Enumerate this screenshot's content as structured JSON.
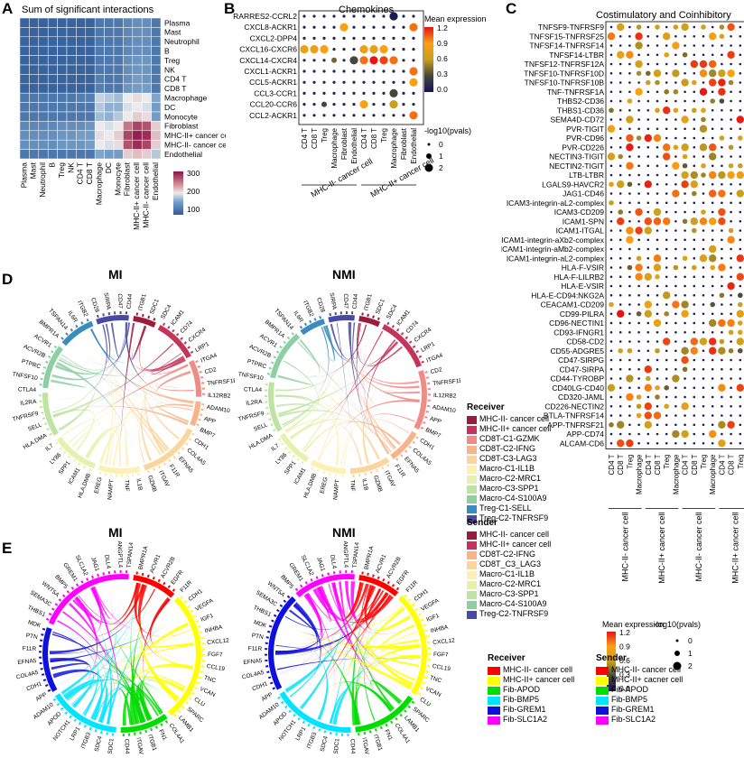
{
  "panels": {
    "A": {
      "letter": "A",
      "title": "Sum of significant interactions"
    },
    "B": {
      "letter": "B",
      "title": "Chemokines"
    },
    "C": {
      "letter": "C",
      "title": "Costimulatory and Coinhibitory"
    },
    "D": {
      "letter": "D",
      "left_title": "MI",
      "right_title": "NMI"
    },
    "E": {
      "letter": "E",
      "left_title": "MI",
      "right_title": "NMI"
    }
  },
  "chart_data": [
    {
      "type": "heatmap",
      "title": "Sum of significant interactions",
      "rows": [
        "Plasma",
        "Mast",
        "Neutrophil",
        "B",
        "Treg",
        "NK",
        "CD4 T",
        "CD8 T",
        "Macrophage",
        "DC",
        "Monocyte",
        "Fibroblast",
        "MHC-II+ cancer cell",
        "MHC-II- cancer cell",
        "Endothelial"
      ],
      "cols": [
        "Plasma",
        "Mast",
        "Neutrophil",
        "B",
        "Treg",
        "NK",
        "CD4 T",
        "CD8 T",
        "Macrophage",
        "DC",
        "Monocyte",
        "Fibroblast",
        "MHC-II+ cancer cell",
        "MHC-II- cancer cell",
        "Endothelial"
      ],
      "legend_ticks": [
        300,
        200,
        100
      ],
      "values": [
        [
          30,
          30,
          30,
          30,
          30,
          30,
          30,
          30,
          60,
          60,
          60,
          80,
          90,
          90,
          60
        ],
        [
          30,
          30,
          30,
          30,
          30,
          30,
          30,
          30,
          60,
          60,
          60,
          80,
          90,
          90,
          60
        ],
        [
          30,
          30,
          30,
          30,
          30,
          30,
          30,
          30,
          60,
          60,
          60,
          80,
          90,
          90,
          60
        ],
        [
          30,
          30,
          30,
          30,
          30,
          30,
          30,
          30,
          60,
          60,
          60,
          80,
          90,
          90,
          60
        ],
        [
          30,
          30,
          30,
          30,
          30,
          30,
          30,
          30,
          60,
          60,
          60,
          90,
          100,
          100,
          60
        ],
        [
          30,
          30,
          30,
          30,
          30,
          30,
          30,
          30,
          60,
          60,
          60,
          90,
          100,
          100,
          60
        ],
        [
          30,
          30,
          30,
          30,
          30,
          30,
          30,
          30,
          70,
          60,
          60,
          90,
          110,
          100,
          60
        ],
        [
          30,
          30,
          30,
          30,
          30,
          30,
          30,
          30,
          70,
          60,
          60,
          100,
          110,
          110,
          60
        ],
        [
          60,
          60,
          60,
          60,
          60,
          60,
          70,
          70,
          160,
          150,
          140,
          180,
          190,
          180,
          120
        ],
        [
          60,
          60,
          60,
          60,
          60,
          60,
          60,
          60,
          150,
          130,
          130,
          170,
          180,
          170,
          110
        ],
        [
          60,
          60,
          60,
          60,
          60,
          60,
          60,
          60,
          140,
          130,
          150,
          180,
          200,
          190,
          110
        ],
        [
          80,
          80,
          80,
          80,
          90,
          90,
          90,
          100,
          180,
          170,
          180,
          260,
          300,
          290,
          200
        ],
        [
          90,
          90,
          90,
          90,
          100,
          100,
          110,
          110,
          190,
          180,
          200,
          300,
          330,
          320,
          210
        ],
        [
          90,
          90,
          90,
          90,
          100,
          100,
          100,
          110,
          180,
          170,
          190,
          290,
          320,
          300,
          200
        ],
        [
          60,
          60,
          60,
          60,
          60,
          60,
          60,
          60,
          120,
          110,
          110,
          200,
          210,
          200,
          150
        ]
      ]
    },
    {
      "type": "scatter",
      "title": "Chemokines",
      "rows": [
        "RARRES2-CCRL2",
        "CXCL8-ACKR1",
        "CXCL2-DPP4",
        "CXCL16-CXCR6",
        "CXCL14-CXCR4",
        "CXCL1-ACKR1",
        "CCL5-ACKR1",
        "CCL3-CCR1",
        "CCL20-CCR6",
        "CCL2-ACKR1"
      ],
      "cols": [
        "CD4 T",
        "CD8 T",
        "Treg",
        "Macrophage",
        "Fibroblast",
        "Endothelial",
        "CD4 T",
        "CD8 T",
        "Treg",
        "Macrophage",
        "Fibroblast",
        "Endothelial"
      ],
      "col_groups": [
        {
          "label": "MHC-II- cancer cell"
        },
        {
          "label": "MHC-II+ cancer cell"
        }
      ],
      "color_legend_title": "Mean expression",
      "color_ticks": [
        "1.2",
        "0.9",
        "0.6",
        "0.3",
        "0.0"
      ],
      "size_legend_title": "-log10(pvals)",
      "size_ticks": [
        "0",
        "1",
        "2"
      ],
      "points": [
        [
          0,
          0.1,
          0
        ],
        [
          0,
          0.1,
          0
        ],
        [
          0,
          0.1,
          0
        ],
        [
          0,
          0.1,
          0
        ],
        [
          0,
          0.1,
          0
        ],
        [
          0,
          0.1,
          0
        ],
        [
          0,
          0.1,
          0
        ],
        [
          0,
          0.1,
          0
        ],
        [
          0,
          0.1,
          0
        ],
        [
          2,
          0.05,
          2
        ],
        [
          0,
          0.1,
          0
        ],
        [
          0,
          0.1,
          0
        ],
        [
          0,
          0.1,
          0
        ],
        [
          0,
          0.1,
          0
        ],
        [
          0,
          0.1,
          0
        ],
        [
          0,
          0.1,
          0
        ],
        [
          2,
          0.9,
          2
        ],
        [
          0,
          0.1,
          0
        ],
        [
          0,
          0.1,
          0
        ],
        [
          0,
          0.1,
          0
        ],
        [
          0,
          0.1,
          0
        ],
        [
          0,
          0.1,
          0
        ],
        [
          0,
          0.1,
          0
        ],
        [
          2,
          1.0,
          2
        ],
        [
          0,
          0.1,
          0
        ],
        [
          0,
          0.1,
          0
        ],
        [
          0,
          0.1,
          0
        ],
        [
          0,
          0.1,
          0
        ],
        [
          0,
          0.1,
          0
        ],
        [
          0,
          0.1,
          0
        ],
        [
          0,
          0.1,
          0
        ],
        [
          0,
          0.1,
          0
        ],
        [
          0,
          0.1,
          0
        ],
        [
          0,
          0.1,
          0
        ],
        [
          0,
          0.1,
          0
        ],
        [
          0,
          0.1,
          0
        ],
        [
          2,
          0.8,
          2
        ],
        [
          2,
          0.8,
          2
        ],
        [
          2,
          0.9,
          2
        ],
        [
          0,
          0.1,
          0
        ],
        [
          0,
          0.1,
          0
        ],
        [
          0,
          0.1,
          0
        ],
        [
          2,
          0.8,
          2
        ],
        [
          2,
          0.8,
          2
        ],
        [
          2,
          0.9,
          2
        ],
        [
          0,
          0.1,
          0
        ],
        [
          0,
          0.1,
          0
        ],
        [
          0,
          0.1,
          0
        ],
        [
          0,
          0.1,
          0
        ],
        [
          0,
          0.1,
          0
        ],
        [
          0,
          0.1,
          0
        ],
        [
          1,
          0.4,
          1
        ],
        [
          0,
          0.1,
          0
        ],
        [
          2,
          0.3,
          2
        ],
        [
          2,
          1.0,
          2
        ],
        [
          2,
          1.2,
          2
        ],
        [
          2,
          1.1,
          2
        ],
        [
          2,
          1.0,
          2
        ],
        [
          0,
          0.1,
          0
        ],
        [
          0,
          0.1,
          0
        ],
        [
          0,
          0.1,
          0
        ],
        [
          0,
          0.1,
          0
        ],
        [
          0,
          0.1,
          0
        ],
        [
          0,
          0.1,
          0
        ],
        [
          0,
          0.1,
          0
        ],
        [
          0,
          0.1,
          0
        ],
        [
          0,
          0.1,
          0
        ],
        [
          0,
          0.1,
          0
        ],
        [
          0,
          0.1,
          0
        ],
        [
          0,
          0.1,
          0
        ],
        [
          0,
          0.1,
          0
        ],
        [
          2,
          1.0,
          2
        ],
        [
          0,
          0.1,
          0
        ],
        [
          0,
          0.1,
          0
        ],
        [
          0,
          0.1,
          0
        ],
        [
          0,
          0.1,
          0
        ],
        [
          0,
          0.1,
          0
        ],
        [
          0,
          0.1,
          0
        ],
        [
          0,
          0.1,
          0
        ],
        [
          0,
          0.1,
          0
        ],
        [
          0,
          0.1,
          0
        ],
        [
          0,
          0.1,
          0
        ],
        [
          0,
          0.1,
          0
        ],
        [
          2,
          0.9,
          2
        ],
        [
          0,
          0.1,
          0
        ],
        [
          0,
          0.1,
          0
        ],
        [
          0,
          0.1,
          0
        ],
        [
          0,
          0.1,
          0
        ],
        [
          0,
          0.1,
          0
        ],
        [
          0,
          0.1,
          0
        ],
        [
          0,
          0.1,
          0
        ],
        [
          0,
          0.1,
          0
        ],
        [
          0,
          0.1,
          0
        ],
        [
          2,
          0.3,
          2
        ],
        [
          0,
          0.1,
          0
        ],
        [
          0,
          0.1,
          0
        ],
        [
          0,
          0.1,
          0
        ],
        [
          0,
          0.1,
          0
        ],
        [
          1,
          0.3,
          1
        ],
        [
          0,
          0.1,
          0
        ],
        [
          0,
          0.1,
          0
        ],
        [
          0,
          0.1,
          0
        ],
        [
          2,
          0.9,
          2
        ],
        [
          0,
          0.1,
          0
        ],
        [
          0,
          0.1,
          0
        ],
        [
          2,
          0.6,
          2
        ],
        [
          0,
          0.1,
          0
        ],
        [
          0,
          0.1,
          0
        ],
        [
          0,
          0.1,
          0
        ],
        [
          0,
          0.1,
          0
        ],
        [
          0,
          0.1,
          0
        ],
        [
          0,
          0.1,
          0
        ],
        [
          0,
          0.1,
          0
        ],
        [
          0,
          0.1,
          0
        ],
        [
          0,
          0.1,
          0
        ],
        [
          0,
          0.1,
          0
        ],
        [
          0,
          0.1,
          0
        ],
        [
          0,
          0.1,
          0
        ],
        [
          0,
          0.1,
          0
        ],
        [
          2,
          1.0,
          2
        ]
      ]
    },
    {
      "type": "scatter",
      "title": "Costimulatory and Coinhibitory",
      "rows": [
        "TNFSF9-TNFRSF9",
        "TNFSF15-TNFRSF25",
        "TNFSF14-TNFRSF14",
        "TNFSF14-LTBR",
        "TNFSF12-TNFRSF12A",
        "TNFSF10-TNFRSF10D",
        "TNFSF10-TNFRSF10B",
        "TNF-TNFRSF1A",
        "THBS2-CD36",
        "THBS1-CD36",
        "SEMA4D-CD72",
        "PVR-TIGIT",
        "PVR-CD96",
        "PVR-CD226",
        "NECTIN3-TIGIT",
        "NECTIN2-TIGIT",
        "LTB-LTBR",
        "LGALS9-HAVCR2",
        "JAG1-CD46",
        "ICAM3-integrin-aL2-complex",
        "ICAM3-CD209",
        "ICAM1-SPN",
        "ICAM1-ITGAL",
        "ICAM1-integrin-aXb2-complex",
        "ICAM1-integrin-aMb2-complex",
        "ICAM1-integrin-aL2-complex",
        "HLA-F-VSIR",
        "HLA-F-LILRB2",
        "HLA-E-VSIR",
        "HLA-E-CD94:NKG2A",
        "CEACAM1-CD209",
        "CD99-PILRA",
        "CD96-NECTIN1",
        "CD93-IFNGR1",
        "CD58-CD2",
        "CD55-ADGRE5",
        "CD47-SIRPG",
        "CD47-SIRPA",
        "CD44-TYROBP",
        "CD40LG-CD40",
        "CD320-JAML",
        "CD226-NECTIN2",
        "BTLA-TNFRSF14",
        "APP-TNFRSF21",
        "APP-CD74",
        "ALCAM-CD6"
      ],
      "cols": [
        "CD4 T",
        "CD8 T",
        "Treg",
        "Macrophage",
        "CD4 T",
        "CD8 T",
        "Treg",
        "Macrophage",
        "CD4 T",
        "CD8 T",
        "Treg",
        "Macrophage",
        "CD4 T",
        "CD8 T",
        "Treg",
        "Macrophage"
      ],
      "col_groups": [
        {
          "label": "MHC-II- cancer cell"
        },
        {
          "label": "MHC-II+ cancer cell"
        },
        {
          "label": "MHC-II- cancer cell"
        },
        {
          "label": "MHC-II+ cancer cell"
        }
      ],
      "color_legend_title": "Mean expression",
      "color_ticks": [
        "1.2",
        "0.9",
        "0.6",
        "0.3",
        "0.0"
      ],
      "size_legend_title": "-log10(pvals)",
      "size_ticks": [
        "0",
        "1",
        "2"
      ],
      "seed": 7
    }
  ],
  "chord_legend": {
    "D_receiver": {
      "title": "Receiver",
      "items": [
        {
          "label": "MHC-II- cancer cell",
          "color": "#9b1b3c"
        },
        {
          "label": "MHC-II+ cancer cell",
          "color": "#c2345a"
        },
        {
          "label": "CD8T-C1-GZMK",
          "color": "#ee8c85"
        },
        {
          "label": "CD8T-C2-IFNG",
          "color": "#f7b48a"
        },
        {
          "label": "CD8T-C3-LAG3",
          "color": "#fbd59c"
        },
        {
          "label": "Macro-C1-IL1B",
          "color": "#fdf0b4"
        },
        {
          "label": "Macro-C2-MRC1",
          "color": "#e7f1ae"
        },
        {
          "label": "Macro-C3-SPP1",
          "color": "#bfe3a2"
        },
        {
          "label": "Macro-C4-S100A9",
          "color": "#8dcfa3"
        },
        {
          "label": "Treg-C1-SELL",
          "color": "#3b8bbd"
        },
        {
          "label": "Treg-C2-TNFRSF9",
          "color": "#4a4ba0"
        }
      ]
    },
    "D_sender": {
      "title": "Sender",
      "items": [
        {
          "label": "MHC-II- cancer cell",
          "color": "#9b1b3c"
        },
        {
          "label": "MHC-II+ cancer cell",
          "color": "#c2345a"
        },
        {
          "label": "CD8T-C2-IFNG",
          "color": "#f7b48a"
        },
        {
          "label": "CD8T_C3_LAG3",
          "color": "#fbd59c"
        },
        {
          "label": "Macro-C1-IL1B",
          "color": "#fdf0b4"
        },
        {
          "label": "Macro-C2-MRC1",
          "color": "#e7f1ae"
        },
        {
          "label": "Macro-C3-SPP1",
          "color": "#bfe3a2"
        },
        {
          "label": "Macro-C4-S100A9",
          "color": "#8dcfa3"
        },
        {
          "label": "Treg-C2-TNFRSF9",
          "color": "#4a4ba0"
        }
      ]
    },
    "E_receiver": {
      "title": "Receiver",
      "items": [
        {
          "label": "MHC-II- cancer cell",
          "color": "#ff0000"
        },
        {
          "label": "MHC-II+ cancer cell",
          "color": "#ffff00"
        },
        {
          "label": "Fib-APOD",
          "color": "#00dd00"
        },
        {
          "label": "Fib-BMP5",
          "color": "#00e5ff"
        },
        {
          "label": "Fib-GREM1",
          "color": "#1010dd"
        },
        {
          "label": "Fib-SLC1A2",
          "color": "#ff00ff"
        }
      ]
    },
    "E_sender": {
      "title": "Sender",
      "items": [
        {
          "label": "MHC-II- cancer cell",
          "color": "#ff0000"
        },
        {
          "label": "MHC-II+ cacner cell",
          "color": "#ffff00"
        },
        {
          "label": "Fib-APOD",
          "color": "#00dd00"
        },
        {
          "label": "Fib-BMP5",
          "color": "#00e5ff"
        },
        {
          "label": "Fib-GREM1",
          "color": "#1010dd"
        },
        {
          "label": "Fib-SLC1A2",
          "color": "#ff00ff"
        }
      ]
    }
  },
  "chord_D_colors": [
    "#9b1b3c",
    "#c2345a",
    "#ee8c85",
    "#f7b48a",
    "#fbd59c",
    "#fdf0b4",
    "#e7f1ae",
    "#bfe3a2",
    "#8dcfa3",
    "#3b8bbd",
    "#4a4ba0"
  ],
  "chord_E_colors": [
    "#ff0000",
    "#ffff00",
    "#00dd00",
    "#00e5ff",
    "#1010dd",
    "#ff00ff"
  ],
  "chord_D_genes": [
    "CD44",
    "ITGB1",
    "SDC1",
    "SDC4",
    "ICAM1",
    "CD74",
    "CXCR4",
    "LRP1",
    "ITGA4",
    "CD2",
    "TNFRSF1B",
    "IL12RB2",
    "ADAM10",
    "APP",
    "BMP7",
    "CDH1",
    "COL4A5",
    "EFNA5",
    "F11R",
    "ITGAV",
    "GZMB",
    "IL1B",
    "TNF",
    "NAMPT",
    "EREG",
    "HLA.DMB",
    "ICAM1",
    "SPP1",
    "LY86",
    "IL7",
    "HLA.DMA",
    "SELL",
    "TNFRSF9",
    "IL2RA",
    "CTLA4",
    "TNFSF10",
    "PTPRC",
    "ACVR2B",
    "ACVR1",
    "BMPR1A",
    "TSPAN14",
    "IL6R",
    "ITGB2",
    "CD28",
    "SIRPA",
    "CD47"
  ],
  "chord_E_genes": [
    "TSPAN14",
    "BMPR1A",
    "ACVR1",
    "ACVR2B",
    "EGFR",
    "F11R",
    "CDH1",
    "VEGFA",
    "IGF1",
    "INHBA",
    "CXCL12",
    "FGF7",
    "CCL19",
    "TNC",
    "VCAN",
    "CLU",
    "SPARC",
    "LAMB1",
    "COL4A1",
    "FN1",
    "ITGB1",
    "ITGAV",
    "CD44",
    "SDC1",
    "SDC4",
    "ITGB3",
    "LRP1",
    "NOTCH1",
    "APOD",
    "ADAM10",
    "APP",
    "CDH1",
    "COL4A5",
    "EFNA5",
    "F11R",
    "PTN",
    "MDK",
    "THBS1",
    "SEMA3C",
    "WNT5A",
    "BMP5",
    "GREM1",
    "SLC1A2",
    "JAG1",
    "DLL4",
    "ANGPTL4"
  ]
}
